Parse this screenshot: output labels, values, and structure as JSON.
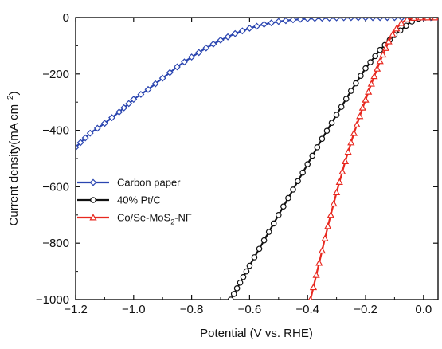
{
  "chart_data": {
    "type": "line",
    "xlabel": "Potential (V vs. RHE)",
    "ylabel_main": "Current density(mA cm",
    "ylabel_sup": "−2",
    "ylabel_end": ")",
    "xlim": [
      -1.2,
      0.05
    ],
    "ylim": [
      -1000,
      0
    ],
    "xticks": [
      -1.2,
      -1.0,
      -0.8,
      -0.6,
      -0.4,
      -0.2,
      0.0
    ],
    "xtick_labels": [
      "−1.2",
      "−1.0",
      "−0.8",
      "−0.6",
      "−0.4",
      "−0.2",
      "0.0"
    ],
    "yticks": [
      0,
      -200,
      -400,
      -600,
      -800,
      -1000
    ],
    "ytick_labels": [
      "0",
      "−200",
      "−400",
      "−600",
      "−800",
      "−1000"
    ],
    "legend_position": "middle-left",
    "series": [
      {
        "name": "Carbon paper",
        "sub": "",
        "name_end": "",
        "color": "#2a45b0",
        "marker": "diamond",
        "x": [
          -1.2,
          -1.15,
          -1.1,
          -1.05,
          -1.0,
          -0.95,
          -0.9,
          -0.85,
          -0.8,
          -0.75,
          -0.7,
          -0.65,
          -0.6,
          -0.55,
          -0.5,
          -0.45,
          -0.4,
          -0.35,
          -0.3,
          -0.25,
          -0.2,
          -0.15,
          -0.1,
          -0.05,
          0.0,
          0.05
        ],
        "y": [
          -460,
          -410,
          -375,
          -335,
          -290,
          -255,
          -215,
          -175,
          -140,
          -108,
          -80,
          -57,
          -38,
          -24,
          -14,
          -8,
          -4,
          -2,
          -1,
          0,
          0,
          0,
          0,
          0,
          0,
          0
        ]
      },
      {
        "name": "40% Pt/C",
        "sub": "",
        "name_end": "",
        "color": "#111111",
        "marker": "circle",
        "x": [
          -0.665,
          -0.6,
          -0.55,
          -0.5,
          -0.45,
          -0.4,
          -0.35,
          -0.3,
          -0.25,
          -0.2,
          -0.15,
          -0.1,
          -0.07,
          -0.05,
          -0.03,
          -0.01,
          0.0,
          0.02,
          0.05
        ],
        "y": [
          -1000,
          -880,
          -790,
          -700,
          -610,
          -520,
          -430,
          -345,
          -260,
          -180,
          -115,
          -62,
          -38,
          -20,
          -8,
          -2,
          0,
          0,
          0
        ]
      },
      {
        "name": "Co/Se-MoS",
        "sub": "2",
        "name_end": "-NF",
        "color": "#e8281f",
        "marker": "triangle",
        "x": [
          -0.39,
          -0.36,
          -0.33,
          -0.3,
          -0.27,
          -0.24,
          -0.21,
          -0.18,
          -0.15,
          -0.12,
          -0.1,
          -0.08,
          -0.06,
          -0.04,
          -0.02,
          0.0,
          0.02,
          0.05
        ],
        "y": [
          -1000,
          -870,
          -740,
          -620,
          -510,
          -410,
          -320,
          -235,
          -155,
          -85,
          -48,
          -22,
          -8,
          -2,
          0,
          0,
          0,
          0
        ]
      }
    ]
  }
}
